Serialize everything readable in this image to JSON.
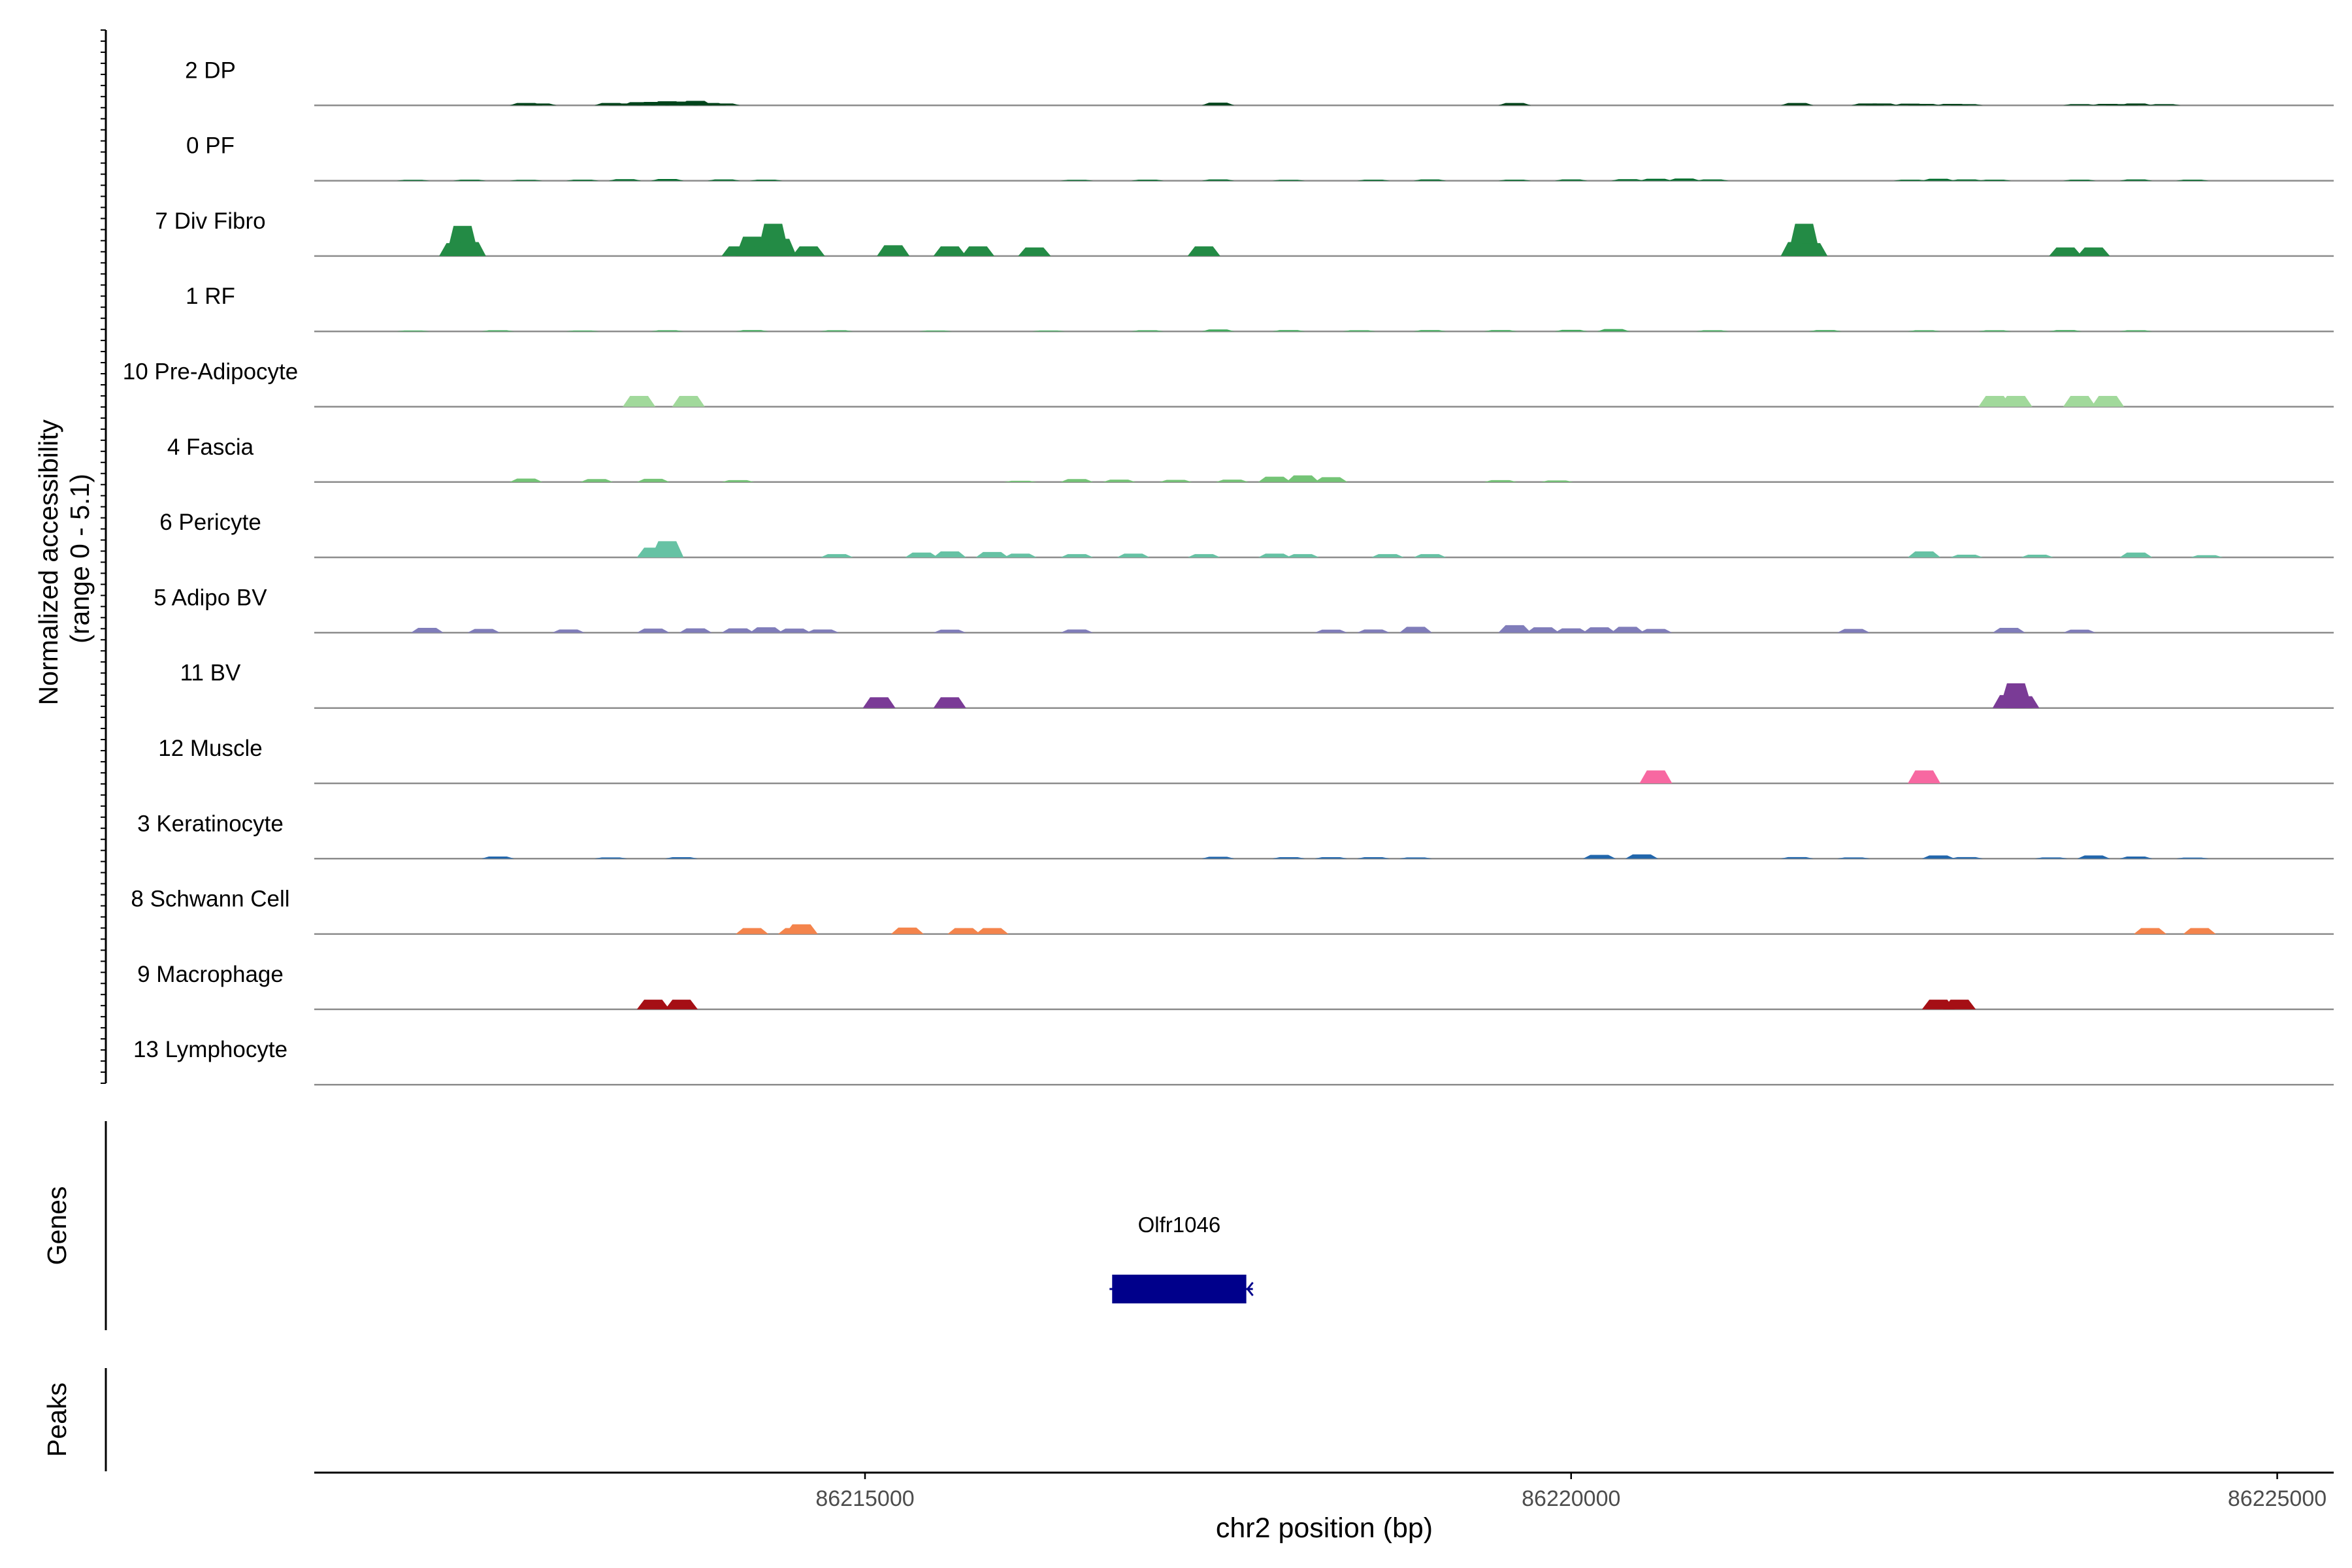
{
  "chart_data": {
    "type": "area",
    "title": "",
    "ylabel": "Normalized accessibility (range 0 - 5.1)",
    "ylabel_lines": [
      "Normalized accessibility",
      "(range 0 - 5.1)"
    ],
    "xlabel": "chr2 position (bp)",
    "xlim": [
      86211100,
      86225400
    ],
    "ylim": [
      0,
      5.1
    ],
    "x_ticks": [
      86215000,
      86220000,
      86225000
    ],
    "x_tick_labels": [
      "86215000",
      "86220000",
      "86225000"
    ],
    "genes_label": "Genes",
    "peaks_label": "Peaks",
    "gene": {
      "name": "Olfr1046",
      "start": 86216750,
      "end": 86217700,
      "strand": "-",
      "color": "#00008b"
    },
    "series": [
      {
        "name": "2 DP",
        "color": "#00441b",
        "x": [
          86212600,
          86212700,
          86213200,
          86213300,
          86213400,
          86213500,
          86213600,
          86213700,
          86213800,
          86213900,
          86214000,
          86217500,
          86219600,
          86221600,
          86222100,
          86222200,
          86222400,
          86222500,
          86222700,
          86222800,
          86223600,
          86223800,
          86223900,
          86224000,
          86224200
        ],
        "y": [
          0.22,
          0.18,
          0.22,
          0.18,
          0.3,
          0.32,
          0.38,
          0.35,
          0.42,
          0.22,
          0.18,
          0.25,
          0.22,
          0.22,
          0.18,
          0.18,
          0.16,
          0.14,
          0.14,
          0.12,
          0.12,
          0.14,
          0.12,
          0.18,
          0.12
        ]
      },
      {
        "name": "0 PF",
        "color": "#006d2c",
        "x": [
          86211800,
          86212200,
          86212600,
          86213000,
          86213300,
          86213600,
          86214000,
          86214300,
          86216500,
          86217000,
          86217500,
          86218000,
          86218600,
          86219000,
          86219600,
          86220000,
          86220400,
          86220600,
          86220800,
          86221000,
          86222400,
          86222600,
          86222800,
          86223000,
          86223600,
          86224000,
          86224400
        ],
        "y": [
          0.08,
          0.1,
          0.08,
          0.1,
          0.14,
          0.16,
          0.12,
          0.1,
          0.08,
          0.1,
          0.12,
          0.08,
          0.1,
          0.12,
          0.1,
          0.12,
          0.14,
          0.18,
          0.2,
          0.12,
          0.1,
          0.18,
          0.12,
          0.1,
          0.1,
          0.12,
          0.1
        ]
      },
      {
        "name": "7 Div Fibro",
        "color": "#238b45",
        "x": [
          86212100,
          86212150,
          86212200,
          86214100,
          86214200,
          86214300,
          86214350,
          86214400,
          86214600,
          86215200,
          86215600,
          86215800,
          86216200,
          86217400,
          86221600,
          86221650,
          86221700,
          86223500,
          86223700
        ],
        "y": [
          1.2,
          2.8,
          1.3,
          0.9,
          1.8,
          1.5,
          3.0,
          1.6,
          0.9,
          1.0,
          0.9,
          0.9,
          0.8,
          0.9,
          1.3,
          3.0,
          1.2,
          0.8,
          0.8
        ]
      },
      {
        "name": "1 RF",
        "color": "#41ab5d",
        "x": [
          86211800,
          86212400,
          86213000,
          86213600,
          86214200,
          86214800,
          86215500,
          86216300,
          86217000,
          86217500,
          86218000,
          86218500,
          86219000,
          86219500,
          86220000,
          86220300,
          86221000,
          86221800,
          86222500,
          86223000,
          86223500,
          86224000
        ],
        "y": [
          0.08,
          0.1,
          0.08,
          0.1,
          0.12,
          0.1,
          0.08,
          0.08,
          0.1,
          0.18,
          0.12,
          0.1,
          0.12,
          0.12,
          0.14,
          0.22,
          0.1,
          0.12,
          0.1,
          0.1,
          0.12,
          0.1
        ]
      },
      {
        "name": "10 Pre-Adipocyte",
        "color": "#a1d99b",
        "x": [
          86213400,
          86213750,
          86223000,
          86223150,
          86223600,
          86223800
        ],
        "y": [
          1.0,
          1.0,
          1.0,
          1.0,
          1.0,
          1.0
        ]
      },
      {
        "name": "4 Fascia",
        "color": "#74c476",
        "x": [
          86212600,
          86213100,
          86213500,
          86214100,
          86216100,
          86216500,
          86216800,
          86217200,
          86217600,
          86217900,
          86218100,
          86218300,
          86219500,
          86219900
        ],
        "y": [
          0.32,
          0.28,
          0.3,
          0.18,
          0.12,
          0.28,
          0.22,
          0.2,
          0.22,
          0.5,
          0.62,
          0.45,
          0.18,
          0.15
        ]
      },
      {
        "name": "6 Pericyte",
        "color": "#66c2a4",
        "x": [
          86213500,
          86213600,
          86214800,
          86215400,
          86215600,
          86215900,
          86216100,
          86216500,
          86216900,
          86217400,
          86217900,
          86218100,
          86218700,
          86219000,
          86222500,
          86222800,
          86223300,
          86224000,
          86224500
        ],
        "y": [
          0.9,
          1.5,
          0.3,
          0.45,
          0.55,
          0.5,
          0.35,
          0.3,
          0.35,
          0.3,
          0.35,
          0.3,
          0.3,
          0.3,
          0.55,
          0.25,
          0.25,
          0.45,
          0.2
        ]
      },
      {
        "name": "5 Adipo BV",
        "color": "#807dba",
        "x": [
          86211900,
          86212300,
          86212900,
          86213500,
          86213800,
          86214100,
          86214300,
          86214500,
          86214700,
          86215600,
          86216500,
          86218300,
          86218600,
          86218900,
          86219600,
          86219800,
          86220000,
          86220200,
          86220400,
          86220600,
          86222000,
          86223100,
          86223600
        ],
        "y": [
          0.45,
          0.35,
          0.3,
          0.38,
          0.4,
          0.4,
          0.5,
          0.38,
          0.3,
          0.28,
          0.3,
          0.28,
          0.3,
          0.55,
          0.7,
          0.5,
          0.4,
          0.5,
          0.55,
          0.35,
          0.35,
          0.45,
          0.28
        ]
      },
      {
        "name": "11 BV",
        "color": "#7a3b96",
        "x": [
          86215100,
          86215600,
          86223100,
          86223150,
          86223200
        ],
        "y": [
          1.0,
          1.0,
          1.2,
          2.3,
          1.1
        ]
      },
      {
        "name": "12 Muscle",
        "color": "#f768a1",
        "x": [
          86220600,
          86222500
        ],
        "y": [
          1.2,
          1.2
        ]
      },
      {
        "name": "3 Keratinocyte",
        "color": "#2166ac",
        "x": [
          86212400,
          86213200,
          86213700,
          86217500,
          86218000,
          86218300,
          86218600,
          86218900,
          86220200,
          86220500,
          86221600,
          86222000,
          86222600,
          86222800,
          86223400,
          86223700,
          86224000,
          86224400
        ],
        "y": [
          0.2,
          0.12,
          0.14,
          0.18,
          0.14,
          0.14,
          0.14,
          0.12,
          0.35,
          0.4,
          0.15,
          0.12,
          0.3,
          0.15,
          0.12,
          0.3,
          0.2,
          0.1
        ]
      },
      {
        "name": "8 Schwann Cell",
        "color": "#f4844c",
        "x": [
          86214200,
          86214500,
          86214550,
          86215300,
          86215700,
          86215900,
          86224100,
          86224450
        ],
        "y": [
          0.55,
          0.55,
          0.9,
          0.6,
          0.55,
          0.55,
          0.55,
          0.55
        ]
      },
      {
        "name": "9 Macrophage",
        "color": "#a50f15",
        "x": [
          86213500,
          86213700,
          86222600,
          86222750
        ],
        "y": [
          0.9,
          0.9,
          0.9,
          0.9
        ]
      },
      {
        "name": "13 Lymphocyte",
        "color": "#6a1a4c",
        "x": [],
        "y": []
      }
    ]
  }
}
